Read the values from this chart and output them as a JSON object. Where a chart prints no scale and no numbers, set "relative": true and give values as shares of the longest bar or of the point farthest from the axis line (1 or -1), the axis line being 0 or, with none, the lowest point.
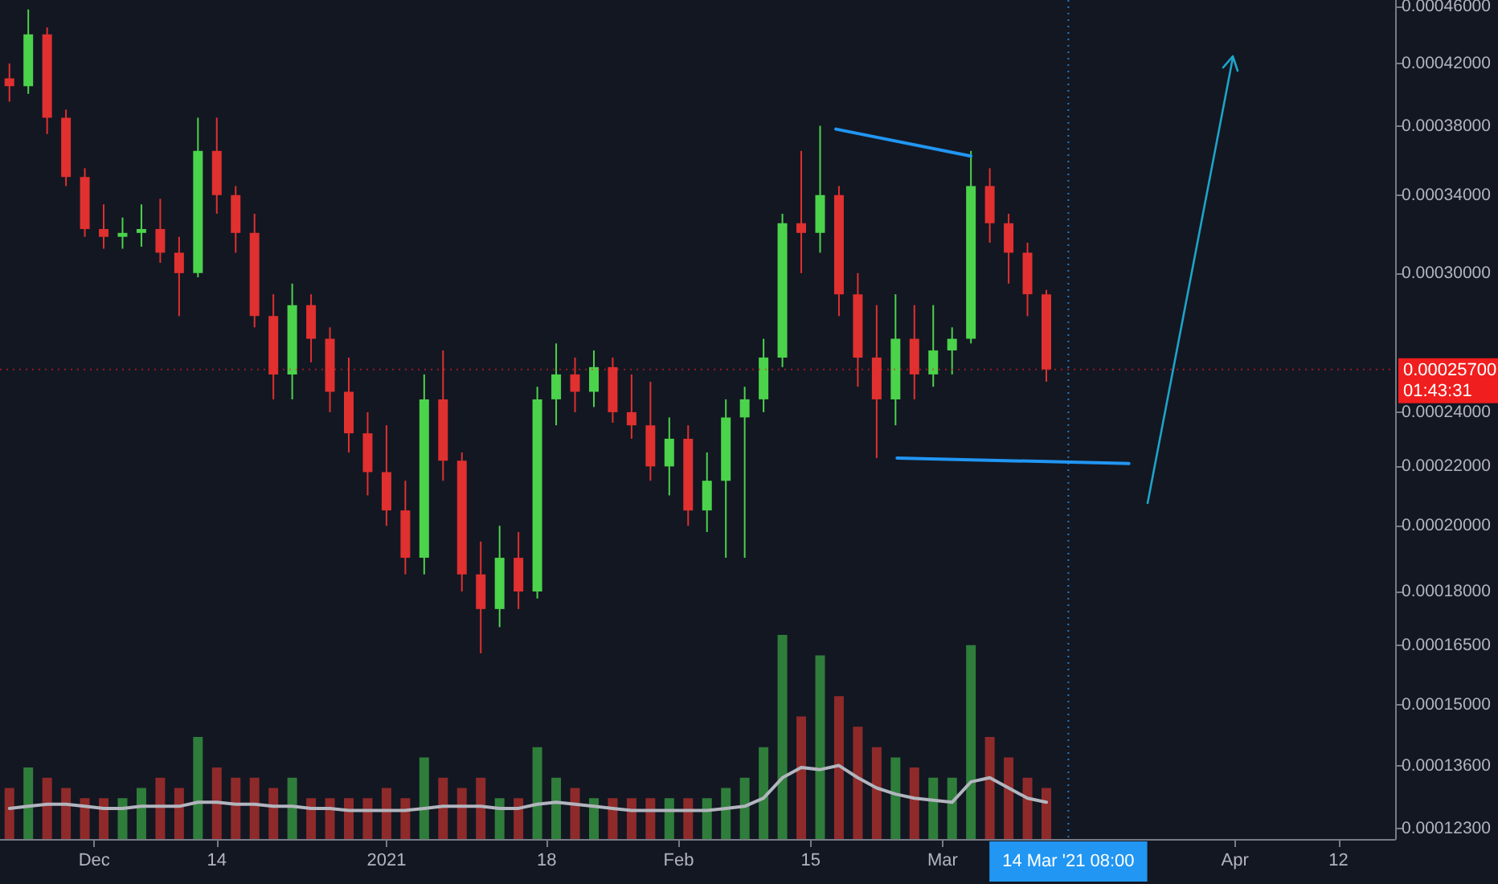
{
  "chart_data": [
    {
      "type": "candlestick",
      "log": "y",
      "grid": false,
      "tick_labels": "y",
      "xlim": [
        "2020-11-21",
        "2021-04-18"
      ],
      "ylim": [
        0.000121,
        0.000465
      ],
      "yticks": [
        {
          "value": 0.000123,
          "label": "0.00012300"
        },
        {
          "value": 0.000136,
          "label": "0.00013600"
        },
        {
          "value": 0.00015,
          "label": "0.00015000"
        },
        {
          "value": 0.000165,
          "label": "0.00016500"
        },
        {
          "value": 0.00018,
          "label": "0.00018000"
        },
        {
          "value": 0.0002,
          "label": "0.00020000"
        },
        {
          "value": 0.00022,
          "label": "0.00022000"
        },
        {
          "value": 0.00024,
          "label": "0.00024000"
        },
        {
          "value": 0.0003,
          "label": "0.00030000"
        },
        {
          "value": 0.00034,
          "label": "0.00034000"
        },
        {
          "value": 0.00038,
          "label": "0.00038000"
        },
        {
          "value": 0.00042,
          "label": "0.00042000"
        },
        {
          "value": 0.00046,
          "label": "0.00046000"
        }
      ],
      "ref_lines": [
        {
          "axis": "y",
          "value": 0.000257,
          "label": "0.00025700",
          "color": "#f01e1e",
          "line_style": "dotted"
        },
        {
          "axis": "x",
          "value": "2021-03-14T08:00",
          "label": "14 Mar '21 08:00",
          "color": "#2196f3",
          "line_style": "dotted"
        }
      ],
      "annotations": [
        "01:43:31"
      ],
      "series": [
        {
          "x": [
            "2020-11-22",
            "2020-11-24",
            "2020-11-26",
            "2020-11-28",
            "2020-11-30",
            "2020-12-02",
            "2020-12-04",
            "2020-12-06",
            "2020-12-08",
            "2020-12-10",
            "2020-12-12",
            "2020-12-14",
            "2020-12-16",
            "2020-12-18",
            "2020-12-20",
            "2020-12-22",
            "2020-12-24",
            "2020-12-26",
            "2020-12-28",
            "2020-12-30",
            "2021-01-01",
            "2021-01-03",
            "2021-01-05",
            "2021-01-07",
            "2021-01-09",
            "2021-01-11",
            "2021-01-13",
            "2021-01-15",
            "2021-01-17",
            "2021-01-19",
            "2021-01-21",
            "2021-01-23",
            "2021-01-25",
            "2021-01-27",
            "2021-01-29",
            "2021-01-31",
            "2021-02-02",
            "2021-02-04",
            "2021-02-06",
            "2021-02-08",
            "2021-02-10",
            "2021-02-12",
            "2021-02-14",
            "2021-02-16",
            "2021-02-18",
            "2021-02-20",
            "2021-02-22",
            "2021-02-24",
            "2021-02-26",
            "2021-02-28",
            "2021-03-02",
            "2021-03-04",
            "2021-03-06",
            "2021-03-08",
            "2021-03-10",
            "2021-03-12"
          ],
          "ohlc": [
            [
              0.00041,
              0.00042,
              0.000395,
              0.000405
            ],
            [
              0.000405,
              0.000458,
              0.0004,
              0.00044
            ],
            [
              0.00044,
              0.000445,
              0.000375,
              0.000385
            ],
            [
              0.000385,
              0.00039,
              0.000345,
              0.00035
            ],
            [
              0.00035,
              0.000355,
              0.000318,
              0.000322
            ],
            [
              0.000322,
              0.000335,
              0.000312,
              0.000318
            ],
            [
              0.000318,
              0.000328,
              0.000312,
              0.00032
            ],
            [
              0.00032,
              0.000335,
              0.000313,
              0.000322
            ],
            [
              0.000322,
              0.000338,
              0.000305,
              0.00031
            ],
            [
              0.00031,
              0.000318,
              0.00028,
              0.0003
            ],
            [
              0.0003,
              0.000385,
              0.000298,
              0.000365
            ],
            [
              0.000365,
              0.000385,
              0.00033,
              0.00034
            ],
            [
              0.00034,
              0.000345,
              0.00031,
              0.00032
            ],
            [
              0.00032,
              0.00033,
              0.000275,
              0.00028
            ],
            [
              0.00028,
              0.00029,
              0.000245,
              0.000255
            ],
            [
              0.000255,
              0.000295,
              0.000245,
              0.000285
            ],
            [
              0.000285,
              0.00029,
              0.00026,
              0.00027
            ],
            [
              0.00027,
              0.000275,
              0.00024,
              0.000248
            ],
            [
              0.000248,
              0.000262,
              0.000225,
              0.000232
            ],
            [
              0.000232,
              0.00024,
              0.00021,
              0.000218
            ],
            [
              0.000218,
              0.000235,
              0.0002,
              0.000205
            ],
            [
              0.000205,
              0.000215,
              0.000185,
              0.00019
            ],
            [
              0.00019,
              0.000255,
              0.000185,
              0.000245
            ],
            [
              0.000245,
              0.000265,
              0.000215,
              0.000222
            ],
            [
              0.000222,
              0.000225,
              0.00018,
              0.000185
            ],
            [
              0.000185,
              0.000195,
              0.000163,
              0.000175
            ],
            [
              0.000175,
              0.0002,
              0.00017,
              0.00019
            ],
            [
              0.00019,
              0.000198,
              0.000175,
              0.00018
            ],
            [
              0.00018,
              0.00025,
              0.000178,
              0.000245
            ],
            [
              0.000245,
              0.000268,
              0.000235,
              0.000255
            ],
            [
              0.000255,
              0.000262,
              0.00024,
              0.000248
            ],
            [
              0.000248,
              0.000265,
              0.000242,
              0.000258
            ],
            [
              0.000258,
              0.000262,
              0.000236,
              0.00024
            ],
            [
              0.00024,
              0.000255,
              0.00023,
              0.000235
            ],
            [
              0.000235,
              0.000252,
              0.000215,
              0.00022
            ],
            [
              0.00022,
              0.000238,
              0.00021,
              0.00023
            ],
            [
              0.00023,
              0.000235,
              0.0002,
              0.000205
            ],
            [
              0.000205,
              0.000225,
              0.000198,
              0.000215
            ],
            [
              0.000215,
              0.000245,
              0.00019,
              0.000238
            ],
            [
              0.000238,
              0.00025,
              0.00019,
              0.000245
            ],
            [
              0.000245,
              0.00027,
              0.00024,
              0.000262
            ],
            [
              0.000262,
              0.00033,
              0.000258,
              0.000325
            ],
            [
              0.000325,
              0.000365,
              0.0003,
              0.00032
            ],
            [
              0.00032,
              0.00038,
              0.00031,
              0.00034
            ],
            [
              0.00034,
              0.000345,
              0.00028,
              0.00029
            ],
            [
              0.00029,
              0.0003,
              0.00025,
              0.000262
            ],
            [
              0.000262,
              0.000285,
              0.000223,
              0.000245
            ],
            [
              0.000245,
              0.00029,
              0.000235,
              0.00027
            ],
            [
              0.00027,
              0.000285,
              0.000245,
              0.000255
            ],
            [
              0.000255,
              0.000285,
              0.00025,
              0.000265
            ],
            [
              0.000265,
              0.000275,
              0.000255,
              0.00027
            ],
            [
              0.00027,
              0.000365,
              0.000268,
              0.000345
            ],
            [
              0.000345,
              0.000355,
              0.000315,
              0.000325
            ],
            [
              0.000325,
              0.00033,
              0.000295,
              0.00031
            ],
            [
              0.00031,
              0.000315,
              0.00028,
              0.00029
            ],
            [
              0.00029,
              0.000292,
              0.000252,
              0.000257
            ]
          ],
          "colors": [
            "#e0302f",
            "#4bd34b",
            "#e0302f",
            "#e0302f",
            "#e0302f",
            "#e0302f",
            "#4bd34b",
            "#4bd34b",
            "#e0302f",
            "#e0302f",
            "#4bd34b",
            "#e0302f",
            "#e0302f",
            "#e0302f",
            "#e0302f",
            "#4bd34b",
            "#e0302f",
            "#e0302f",
            "#e0302f",
            "#e0302f",
            "#e0302f",
            "#e0302f",
            "#4bd34b",
            "#e0302f",
            "#e0302f",
            "#e0302f",
            "#4bd34b",
            "#e0302f",
            "#4bd34b",
            "#4bd34b",
            "#e0302f",
            "#4bd34b",
            "#e0302f",
            "#e0302f",
            "#e0302f",
            "#4bd34b",
            "#e0302f",
            "#4bd34b",
            "#4bd34b",
            "#4bd34b",
            "#4bd34b",
            "#4bd34b",
            "#e0302f",
            "#4bd34b",
            "#e0302f",
            "#e0302f",
            "#e0302f",
            "#4bd34b",
            "#e0302f",
            "#4bd34b",
            "#4bd34b",
            "#4bd34b",
            "#e0302f",
            "#e0302f",
            "#e0302f",
            "#e0302f"
          ]
        },
        {
          "type": "line",
          "color": "#2196f3",
          "x": [
            "2021-02-17T16:00",
            "2021-03-04T00:00"
          ],
          "values": [
            0.000378,
            0.000362
          ]
        },
        {
          "type": "line",
          "color": "#2196f3",
          "x": [
            "2021-02-24T04:00",
            "2021-03-20T18:00"
          ],
          "values": [
            0.000223,
            0.000221
          ]
        }
      ]
    },
    {
      "type": "bar",
      "relative": true,
      "grid": false,
      "xlim": [
        "2020-11-21",
        "2021-04-18"
      ],
      "xticks": [
        {
          "value": "2020-12-01",
          "label": "Dec"
        },
        {
          "value": "2020-12-14",
          "label": "14"
        },
        {
          "value": "2021-01-01",
          "label": "2021"
        },
        {
          "value": "2021-01-18",
          "label": "18"
        },
        {
          "value": "2021-02-01",
          "label": "Feb"
        },
        {
          "value": "2021-02-15",
          "label": "15"
        },
        {
          "value": "2021-03-01",
          "label": "Mar"
        },
        {
          "value": "2021-04-01",
          "label": "Apr"
        },
        {
          "value": "2021-04-12",
          "label": "12"
        }
      ],
      "x": [
        "2020-11-22",
        "2020-11-24",
        "2020-11-26",
        "2020-11-28",
        "2020-11-30",
        "2020-12-02",
        "2020-12-04",
        "2020-12-06",
        "2020-12-08",
        "2020-12-10",
        "2020-12-12",
        "2020-12-14",
        "2020-12-16",
        "2020-12-18",
        "2020-12-20",
        "2020-12-22",
        "2020-12-24",
        "2020-12-26",
        "2020-12-28",
        "2020-12-30",
        "2021-01-01",
        "2021-01-03",
        "2021-01-05",
        "2021-01-07",
        "2021-01-09",
        "2021-01-11",
        "2021-01-13",
        "2021-01-15",
        "2021-01-17",
        "2021-01-19",
        "2021-01-21",
        "2021-01-23",
        "2021-01-25",
        "2021-01-27",
        "2021-01-29",
        "2021-01-31",
        "2021-02-02",
        "2021-02-04",
        "2021-02-06",
        "2021-02-08",
        "2021-02-10",
        "2021-02-12",
        "2021-02-14",
        "2021-02-16",
        "2021-02-18",
        "2021-02-20",
        "2021-02-22",
        "2021-02-24",
        "2021-02-26",
        "2021-02-28",
        "2021-03-02",
        "2021-03-04",
        "2021-03-06",
        "2021-03-08",
        "2021-03-10",
        "2021-03-12"
      ],
      "series": [
        {
          "values": [
            0.25,
            0.35,
            0.3,
            0.25,
            0.2,
            0.2,
            0.2,
            0.25,
            0.3,
            0.25,
            0.5,
            0.35,
            0.3,
            0.3,
            0.25,
            0.3,
            0.2,
            0.2,
            0.2,
            0.2,
            0.25,
            0.2,
            0.4,
            0.3,
            0.25,
            0.3,
            0.2,
            0.2,
            0.45,
            0.3,
            0.25,
            0.2,
            0.2,
            0.2,
            0.2,
            0.2,
            0.2,
            0.2,
            0.25,
            0.3,
            0.45,
            1,
            0.6,
            0.9,
            0.7,
            0.55,
            0.45,
            0.4,
            0.35,
            0.3,
            0.3,
            0.95,
            0.5,
            0.4,
            0.3,
            0.25
          ],
          "colors": [
            "#8f2a2a",
            "#2f7d3a",
            "#8f2a2a",
            "#8f2a2a",
            "#8f2a2a",
            "#8f2a2a",
            "#2f7d3a",
            "#2f7d3a",
            "#8f2a2a",
            "#8f2a2a",
            "#2f7d3a",
            "#8f2a2a",
            "#8f2a2a",
            "#8f2a2a",
            "#8f2a2a",
            "#2f7d3a",
            "#8f2a2a",
            "#8f2a2a",
            "#8f2a2a",
            "#8f2a2a",
            "#8f2a2a",
            "#8f2a2a",
            "#2f7d3a",
            "#8f2a2a",
            "#8f2a2a",
            "#8f2a2a",
            "#2f7d3a",
            "#8f2a2a",
            "#2f7d3a",
            "#2f7d3a",
            "#8f2a2a",
            "#2f7d3a",
            "#8f2a2a",
            "#8f2a2a",
            "#8f2a2a",
            "#2f7d3a",
            "#8f2a2a",
            "#2f7d3a",
            "#2f7d3a",
            "#2f7d3a",
            "#2f7d3a",
            "#2f7d3a",
            "#8f2a2a",
            "#2f7d3a",
            "#8f2a2a",
            "#8f2a2a",
            "#8f2a2a",
            "#2f7d3a",
            "#8f2a2a",
            "#2f7d3a",
            "#2f7d3a",
            "#2f7d3a",
            "#8f2a2a",
            "#8f2a2a",
            "#8f2a2a",
            "#8f2a2a"
          ]
        },
        {
          "type": "line",
          "color": "#b2b5be",
          "values": [
            0.15,
            0.16,
            0.17,
            0.17,
            0.16,
            0.15,
            0.15,
            0.16,
            0.16,
            0.16,
            0.18,
            0.18,
            0.17,
            0.17,
            0.16,
            0.16,
            0.15,
            0.15,
            0.14,
            0.14,
            0.14,
            0.14,
            0.15,
            0.16,
            0.16,
            0.16,
            0.15,
            0.15,
            0.17,
            0.18,
            0.17,
            0.16,
            0.15,
            0.14,
            0.14,
            0.14,
            0.14,
            0.14,
            0.15,
            0.16,
            0.2,
            0.3,
            0.35,
            0.34,
            0.36,
            0.3,
            0.25,
            0.22,
            0.2,
            0.19,
            0.18,
            0.28,
            0.3,
            0.25,
            0.2,
            0.18
          ]
        }
      ]
    }
  ]
}
